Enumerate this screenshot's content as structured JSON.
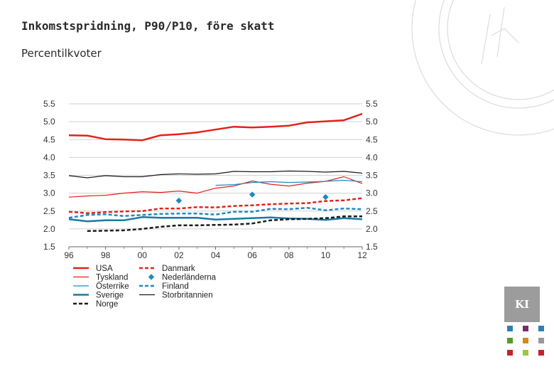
{
  "slide": {
    "title": "Inkomstspridning, P90/P10, före skatt",
    "subtitle": "Percentilkvoter"
  },
  "logo": {
    "text": "KI"
  },
  "chart_data": {
    "type": "line",
    "title": "Inkomstspridning, P90/P10, före skatt",
    "ylabel": "Percentilkvoter",
    "ylim": [
      1.5,
      5.5
    ],
    "yticks": [
      "5.5",
      "5.0",
      "4.5",
      "4.0",
      "3.5",
      "3.0",
      "2.5",
      "2.0",
      "1.5"
    ],
    "xlim": [
      1996,
      2012
    ],
    "xticks": [
      "96",
      "98",
      "00",
      "02",
      "04",
      "06",
      "08",
      "10",
      "12"
    ],
    "grid": true,
    "legend_position": "bottom",
    "series": [
      {
        "name": "USA",
        "color": "#e32219",
        "style": "solid",
        "width": 2.5,
        "x": [
          1996,
          1997,
          1998,
          1999,
          2000,
          2001,
          2002,
          2003,
          2004,
          2005,
          2006,
          2007,
          2008,
          2009,
          2010,
          2011,
          2012
        ],
        "values": [
          4.62,
          4.61,
          4.51,
          4.5,
          4.48,
          4.62,
          4.65,
          4.7,
          4.78,
          4.86,
          4.84,
          4.86,
          4.89,
          4.98,
          5.01,
          5.04,
          5.22
        ]
      },
      {
        "name": "Danmark",
        "color": "#e32219",
        "style": "dashed",
        "width": 2.5,
        "x": [
          1996,
          1997,
          1998,
          1999,
          2000,
          2001,
          2002,
          2003,
          2004,
          2005,
          2006,
          2007,
          2008,
          2009,
          2010,
          2011,
          2012
        ],
        "values": [
          2.48,
          2.44,
          2.47,
          2.49,
          2.5,
          2.57,
          2.57,
          2.61,
          2.6,
          2.64,
          2.66,
          2.69,
          2.71,
          2.72,
          2.78,
          2.8,
          2.86
        ]
      },
      {
        "name": "Tyskland",
        "color": "#e32219",
        "style": "solid",
        "width": 1.2,
        "x": [
          1996,
          1997,
          1998,
          1999,
          2000,
          2001,
          2002,
          2003,
          2004,
          2005,
          2006,
          2007,
          2008,
          2009,
          2010,
          2011,
          2012
        ],
        "values": [
          2.89,
          2.92,
          2.94,
          3.0,
          3.04,
          3.02,
          3.06,
          3.0,
          3.14,
          3.2,
          3.34,
          3.25,
          3.2,
          3.28,
          3.33,
          3.46,
          3.27
        ]
      },
      {
        "name": "Nederländerna",
        "color": "#1f8ac0",
        "style": "marker",
        "x": [
          2002,
          2006,
          2010
        ],
        "values": [
          2.79,
          2.96,
          2.89
        ]
      },
      {
        "name": "Österrike",
        "color": "#1f8ac0",
        "style": "solid",
        "width": 1.2,
        "x": [
          2004,
          2005,
          2006,
          2007,
          2008,
          2009,
          2010,
          2011,
          2012
        ],
        "values": [
          3.22,
          3.24,
          3.3,
          3.32,
          3.3,
          3.31,
          3.33,
          3.36,
          3.32
        ]
      },
      {
        "name": "Finland",
        "color": "#1f8ac0",
        "style": "dashed",
        "width": 2.5,
        "x": [
          1996,
          1997,
          1998,
          1999,
          2000,
          2001,
          2002,
          2003,
          2004,
          2005,
          2006,
          2007,
          2008,
          2009,
          2010,
          2011,
          2012
        ],
        "values": [
          2.31,
          2.39,
          2.41,
          2.36,
          2.39,
          2.42,
          2.43,
          2.43,
          2.4,
          2.48,
          2.48,
          2.56,
          2.55,
          2.59,
          2.52,
          2.57,
          2.55
        ]
      },
      {
        "name": "Sverige",
        "color": "#1a78a6",
        "style": "solid",
        "width": 2.5,
        "x": [
          1996,
          1997,
          1998,
          1999,
          2000,
          2001,
          2002,
          2003,
          2004,
          2005,
          2006,
          2007,
          2008,
          2009,
          2010,
          2011,
          2012
        ],
        "values": [
          2.27,
          2.21,
          2.24,
          2.24,
          2.33,
          2.31,
          2.31,
          2.31,
          2.26,
          2.28,
          2.3,
          2.32,
          2.29,
          2.28,
          2.25,
          2.3,
          2.27
        ]
      },
      {
        "name": "Storbritannien",
        "color": "#1a1a1a",
        "style": "solid",
        "width": 1.2,
        "x": [
          1996,
          1997,
          1998,
          1999,
          2000,
          2001,
          2002,
          2003,
          2004,
          2005,
          2006,
          2007,
          2008,
          2009,
          2010,
          2011,
          2012
        ],
        "values": [
          3.49,
          3.43,
          3.49,
          3.46,
          3.46,
          3.52,
          3.54,
          3.53,
          3.54,
          3.61,
          3.6,
          3.6,
          3.62,
          3.61,
          3.59,
          3.61,
          3.56
        ]
      },
      {
        "name": "Norge",
        "color": "#1a1a1a",
        "style": "dashed",
        "width": 2.5,
        "x": [
          1997,
          1998,
          1999,
          2000,
          2001,
          2002,
          2003,
          2004,
          2005,
          2006,
          2007,
          2008,
          2009,
          2010,
          2011,
          2012
        ],
        "values": [
          1.94,
          1.95,
          1.96,
          2.0,
          2.06,
          2.1,
          2.1,
          2.11,
          2.12,
          2.15,
          2.24,
          2.27,
          2.28,
          2.3,
          2.35,
          2.35
        ]
      }
    ]
  },
  "palette": [
    "#2e7fb8",
    "#7b2a6b",
    "#2e7fb8",
    "#5a9a2a",
    "#d48a1a",
    "#999999",
    "#c8202a",
    "#9ac93c",
    "#c8202a"
  ]
}
